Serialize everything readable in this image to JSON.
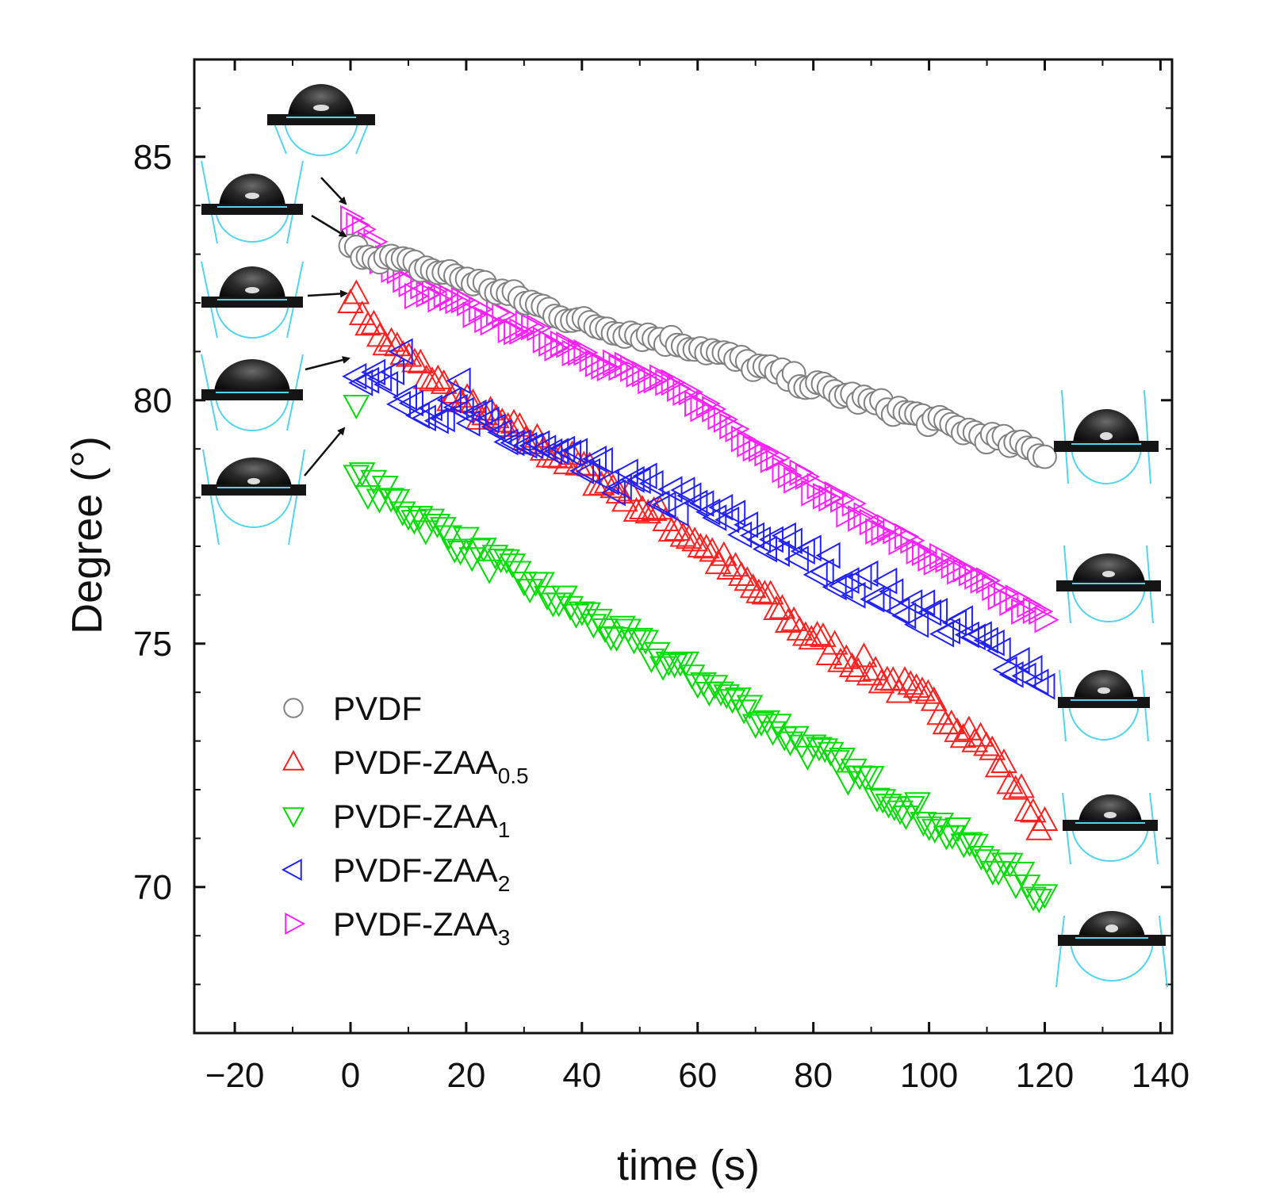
{
  "chart_data": {
    "type": "scatter",
    "title": "",
    "xlabel": "time (s)",
    "ylabel": "Degree (°)",
    "xlim": [
      -27,
      142
    ],
    "ylim": [
      67,
      87
    ],
    "xticks": [
      -20,
      0,
      20,
      40,
      60,
      80,
      100,
      120,
      140
    ],
    "xtick_labels": [
      "−20",
      "0",
      "20",
      "40",
      "60",
      "80",
      "100",
      "120",
      "140"
    ],
    "yticks": [
      70,
      75,
      80,
      85
    ],
    "ytick_labels": [
      "70",
      "75",
      "80",
      "85"
    ],
    "legend_position": "bottom-left",
    "series": [
      {
        "name": "PVDF",
        "name_main": "PVDF",
        "name_sub": "",
        "marker": "circle",
        "color": "#808080",
        "x_start": 0,
        "x_end": 120,
        "count": 120,
        "trend": [
          [
            0,
            83.1
          ],
          [
            20,
            82.5
          ],
          [
            40,
            81.6
          ],
          [
            60,
            81.1
          ],
          [
            80,
            80.3
          ],
          [
            100,
            79.6
          ],
          [
            120,
            78.9
          ]
        ],
        "scatter": 0.12
      },
      {
        "name": "PVDF-ZAA0.5",
        "name_main": "PVDF-ZAA",
        "name_sub": "0.5",
        "marker": "triangle-up",
        "color": "#ff2020",
        "x_start": 0,
        "x_end": 120,
        "count": 120,
        "trend": [
          [
            0,
            82.2
          ],
          [
            5,
            81.3
          ],
          [
            20,
            79.9
          ],
          [
            40,
            78.6
          ],
          [
            60,
            77.1
          ],
          [
            80,
            75.1
          ],
          [
            100,
            73.8
          ],
          [
            110,
            72.9
          ],
          [
            120,
            71.2
          ]
        ],
        "scatter": 0.2
      },
      {
        "name": "PVDF-ZAA1",
        "name_main": "PVDF-ZAA",
        "name_sub": "1",
        "marker": "triangle-down",
        "color": "#00dd00",
        "x_start": 1,
        "x_end": 120,
        "count": 120,
        "trend": [
          [
            1,
            78.4
          ],
          [
            20,
            77.0
          ],
          [
            40,
            75.6
          ],
          [
            60,
            74.3
          ],
          [
            80,
            72.8
          ],
          [
            100,
            71.4
          ],
          [
            120,
            69.8
          ]
        ],
        "scatter": 0.22,
        "extra_points": [
          [
            1,
            79.9
          ]
        ]
      },
      {
        "name": "PVDF-ZAA2",
        "name_main": "PVDF-ZAA",
        "name_sub": "2",
        "marker": "triangle-left",
        "color": "#2020ff",
        "x_start": 1,
        "x_end": 120,
        "count": 110,
        "trend": [
          [
            1,
            80.7
          ],
          [
            10,
            80.1
          ],
          [
            20,
            79.6
          ],
          [
            40,
            78.6
          ],
          [
            60,
            77.8
          ],
          [
            80,
            76.7
          ],
          [
            100,
            75.6
          ],
          [
            120,
            74.3
          ]
        ],
        "scatter": 0.32,
        "extra_points": [
          [
            9,
            81.0
          ],
          [
            19,
            80.4
          ]
        ]
      },
      {
        "name": "PVDF-ZAA3",
        "name_main": "PVDF-ZAA",
        "name_sub": "3",
        "marker": "triangle-right",
        "color": "#ff20ff",
        "x_start": 0,
        "x_end": 120,
        "count": 120,
        "trend": [
          [
            0,
            83.7
          ],
          [
            10,
            82.3
          ],
          [
            20,
            81.9
          ],
          [
            40,
            81.0
          ],
          [
            60,
            80.0
          ],
          [
            80,
            78.2
          ],
          [
            100,
            76.8
          ],
          [
            120,
            75.5
          ]
        ],
        "scatter": 0.15
      }
    ]
  }
}
